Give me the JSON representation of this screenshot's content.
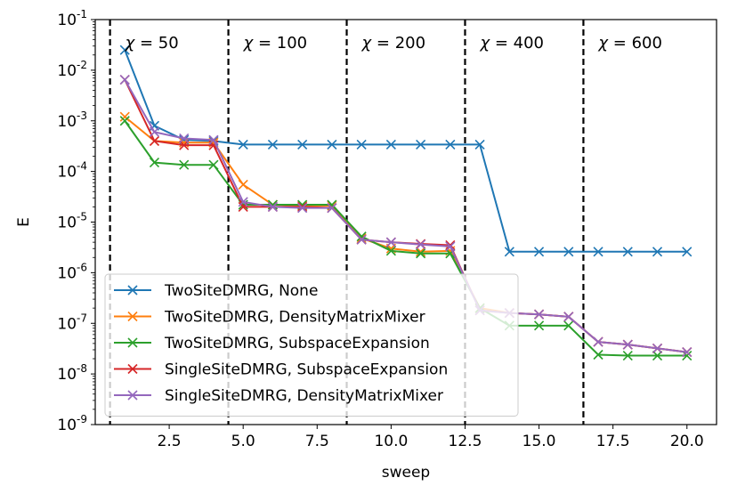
{
  "chart_data": {
    "type": "line",
    "xlabel": "sweep",
    "ylabel": "E",
    "xlim": [
      0,
      21
    ],
    "ylim": [
      1e-09,
      0.1
    ],
    "yscale": "log",
    "x_ticks": [
      2.5,
      5.0,
      7.5,
      10.0,
      12.5,
      15.0,
      17.5,
      20.0
    ],
    "x_tick_labels": [
      "2.5",
      "5.0",
      "7.5",
      "10.0",
      "12.5",
      "15.0",
      "17.5",
      "20.0"
    ],
    "y_ticks": [
      1e-09,
      1e-08,
      1e-07,
      1e-06,
      1e-05,
      0.0001,
      0.001,
      0.01,
      0.1
    ],
    "y_tick_exponents": [
      "-9",
      "-8",
      "-7",
      "-6",
      "-5",
      "-4",
      "-3",
      "-2",
      "-1"
    ],
    "y_tick_base": "10",
    "grid": false,
    "legend_position": "lower-left",
    "vertical_lines": [
      0.5,
      4.5,
      8.5,
      12.5,
      16.5
    ],
    "annotations": [
      {
        "x": 0.5,
        "symbol": "χ",
        "text": " = 50"
      },
      {
        "x": 4.5,
        "symbol": "χ",
        "text": " = 100"
      },
      {
        "x": 8.5,
        "symbol": "χ",
        "text": " = 200"
      },
      {
        "x": 12.5,
        "symbol": "χ",
        "text": " = 400"
      },
      {
        "x": 16.5,
        "symbol": "χ",
        "text": " = 600"
      }
    ],
    "x": [
      1,
      2,
      3,
      4,
      5,
      6,
      7,
      8,
      9,
      10,
      11,
      12,
      13,
      14,
      15,
      16,
      17,
      18,
      19,
      20
    ],
    "series": [
      {
        "name": "TwoSiteDMRG, None",
        "color": "#1f77b4",
        "values": [
          0.025,
          0.0008,
          0.00042,
          0.0004,
          0.00034,
          0.00034,
          0.00034,
          0.00034,
          0.00034,
          0.00034,
          0.00034,
          0.00034,
          0.00034,
          2.6e-06,
          2.6e-06,
          2.6e-06,
          2.6e-06,
          2.6e-06,
          2.6e-06,
          2.6e-06
        ]
      },
      {
        "name": "TwoSiteDMRG, DensityMatrixMixer",
        "color": "#ff7f0e",
        "values": [
          0.0012,
          0.0004,
          0.00037,
          0.00037,
          5.5e-05,
          2.2e-05,
          2.1e-05,
          2.1e-05,
          4.8e-06,
          3e-06,
          2.6e-06,
          2.7e-06,
          2e-07,
          1.6e-07,
          1.5e-07,
          1.35e-07,
          4.3e-08,
          3.8e-08,
          3.2e-08,
          2.7e-08
        ]
      },
      {
        "name": "TwoSiteDMRG, SubspaceExpansion",
        "color": "#2ca02c",
        "values": [
          0.001,
          0.00015,
          0.000135,
          0.000135,
          2.2e-05,
          2.2e-05,
          2.2e-05,
          2.2e-05,
          5.2e-06,
          2.7e-06,
          2.4e-06,
          2.4e-06,
          2e-07,
          9e-08,
          9e-08,
          9e-08,
          2.4e-08,
          2.3e-08,
          2.3e-08,
          2.3e-08
        ]
      },
      {
        "name": "SingleSiteDMRG, SubspaceExpansion",
        "color": "#d62728",
        "values": [
          0.0065,
          0.0004,
          0.00033,
          0.00033,
          2e-05,
          2e-05,
          2e-05,
          1.9e-05,
          4.5e-06,
          4e-06,
          3.7e-06,
          3.5e-06,
          1.8e-07,
          1.6e-07,
          1.5e-07,
          1.35e-07,
          4.3e-08,
          3.8e-08,
          3.2e-08,
          2.7e-08
        ]
      },
      {
        "name": "SingleSiteDMRG, DensityMatrixMixer",
        "color": "#9467bd",
        "values": [
          0.0065,
          0.0006,
          0.00045,
          0.00042,
          2.5e-05,
          2e-05,
          1.9e-05,
          1.9e-05,
          4.5e-06,
          4e-06,
          3.6e-06,
          3.3e-06,
          1.8e-07,
          1.6e-07,
          1.5e-07,
          1.35e-07,
          4.3e-08,
          3.8e-08,
          3.2e-08,
          2.7e-08
        ]
      }
    ]
  }
}
